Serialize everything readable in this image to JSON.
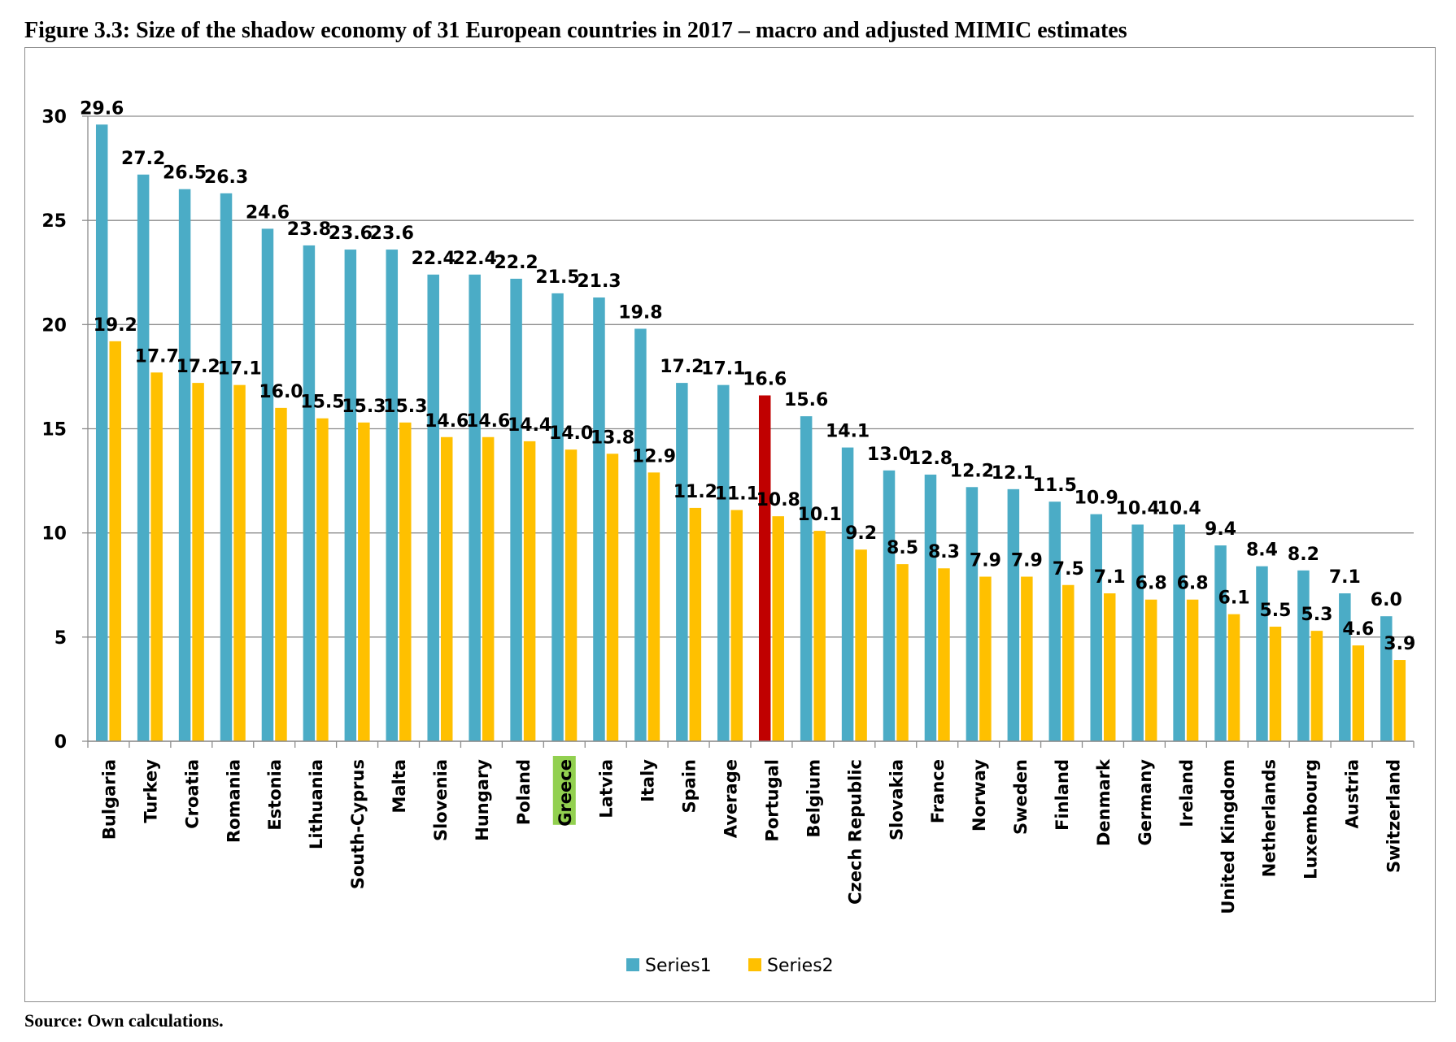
{
  "figure_title": "Figure 3.3: Size of the shadow economy of 31 European countries in 2017 – macro and adjusted MIMIC estimates",
  "source": "Source: Own calculations.",
  "colors": {
    "series1": "#4bacc6",
    "series2": "#ffc000",
    "highlight_bar": "#c00000",
    "highlight_label_bg": "#92d050",
    "grid": "#8c8c8c"
  },
  "chart_data": {
    "type": "bar",
    "title": "",
    "xlabel": "",
    "ylabel": "",
    "ylim": [
      0,
      30
    ],
    "yticks": [
      0,
      5,
      10,
      15,
      20,
      25,
      30
    ],
    "grid": true,
    "legend_position": "bottom",
    "categories": [
      "Bulgaria",
      "Turkey",
      "Croatia",
      "Romania",
      "Estonia",
      "Lithuania",
      "South-Cyprus",
      "Malta",
      "Slovenia",
      "Hungary",
      "Poland",
      "Greece",
      "Latvia",
      "Italy",
      "Spain",
      "Average",
      "Portugal",
      "Belgium",
      "Czech Republic",
      "Slovakia",
      "France",
      "Norway",
      "Sweden",
      "Finland",
      "Denmark",
      "Germany",
      "Ireland",
      "United Kingdom",
      "Netherlands",
      "Luxembourg",
      "Austria",
      "Switzerland"
    ],
    "series": [
      {
        "name": "Series1",
        "values": [
          29.6,
          27.2,
          26.5,
          26.3,
          24.6,
          23.8,
          23.6,
          23.6,
          22.4,
          22.4,
          22.2,
          21.5,
          21.3,
          19.8,
          17.2,
          17.1,
          16.6,
          15.6,
          14.1,
          13.0,
          12.8,
          12.2,
          12.1,
          11.5,
          10.9,
          10.4,
          10.4,
          9.4,
          8.4,
          8.2,
          7.1,
          6.0
        ]
      },
      {
        "name": "Series2",
        "values": [
          19.2,
          17.7,
          17.2,
          17.1,
          16.0,
          15.5,
          15.3,
          15.3,
          14.6,
          14.6,
          14.4,
          14.0,
          13.8,
          12.9,
          11.2,
          11.1,
          10.8,
          10.1,
          9.2,
          8.5,
          8.3,
          7.9,
          7.9,
          7.5,
          7.1,
          6.8,
          6.8,
          6.1,
          5.5,
          5.3,
          4.6,
          3.9
        ]
      }
    ],
    "highlighted_category": "Greece",
    "highlighted_bar": {
      "category": "Portugal",
      "series": "Series1"
    }
  }
}
